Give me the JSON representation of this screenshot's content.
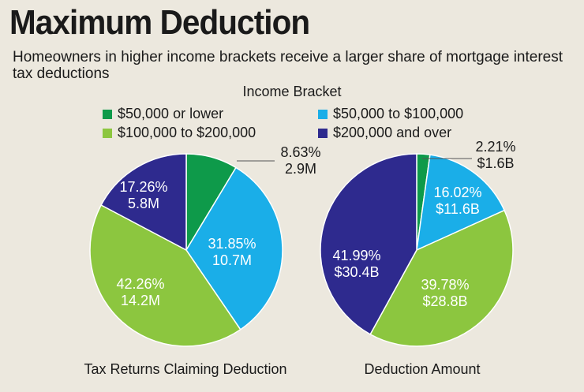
{
  "title": "Maximum Deduction",
  "subtitle": "Homeowners in higher income brackets receive a larger share of mortgage interest tax deductions",
  "legend": {
    "title": "Income Bracket",
    "items": [
      {
        "label": "$50,000 or lower",
        "color": "#0e9a4a"
      },
      {
        "label": "$50,000 to $100,000",
        "color": "#1aaee8"
      },
      {
        "label": "$100,000 to $200,000",
        "color": "#8cc63f"
      },
      {
        "label": "$200,000 and over",
        "color": "#2e2a8e"
      }
    ]
  },
  "chart_data": [
    {
      "type": "pie",
      "title": "Tax Returns Claiming Deduction",
      "categories": [
        "$50,000 or lower",
        "$50,000 to $100,000",
        "$100,000 to $200,000",
        "$200,000 and over"
      ],
      "values": [
        8.63,
        31.85,
        42.26,
        17.26
      ],
      "labels": [
        {
          "pct": "8.63%",
          "amount": "2.9M"
        },
        {
          "pct": "31.85%",
          "amount": "10.7M"
        },
        {
          "pct": "42.26%",
          "amount": "14.2M"
        },
        {
          "pct": "17.26%",
          "amount": "5.8M"
        }
      ],
      "colors": [
        "#0e9a4a",
        "#1aaee8",
        "#8cc63f",
        "#2e2a8e"
      ]
    },
    {
      "type": "pie",
      "title": "Deduction Amount",
      "categories": [
        "$50,000 or lower",
        "$50,000 to $100,000",
        "$100,000 to $200,000",
        "$200,000 and over"
      ],
      "values": [
        2.21,
        16.02,
        39.78,
        41.99
      ],
      "labels": [
        {
          "pct": "2.21%",
          "amount": "$1.6B"
        },
        {
          "pct": "16.02%",
          "amount": "$11.6B"
        },
        {
          "pct": "39.78%",
          "amount": "$28.8B"
        },
        {
          "pct": "41.99%",
          "amount": "$30.4B"
        }
      ],
      "colors": [
        "#0e9a4a",
        "#1aaee8",
        "#8cc63f",
        "#2e2a8e"
      ]
    }
  ]
}
